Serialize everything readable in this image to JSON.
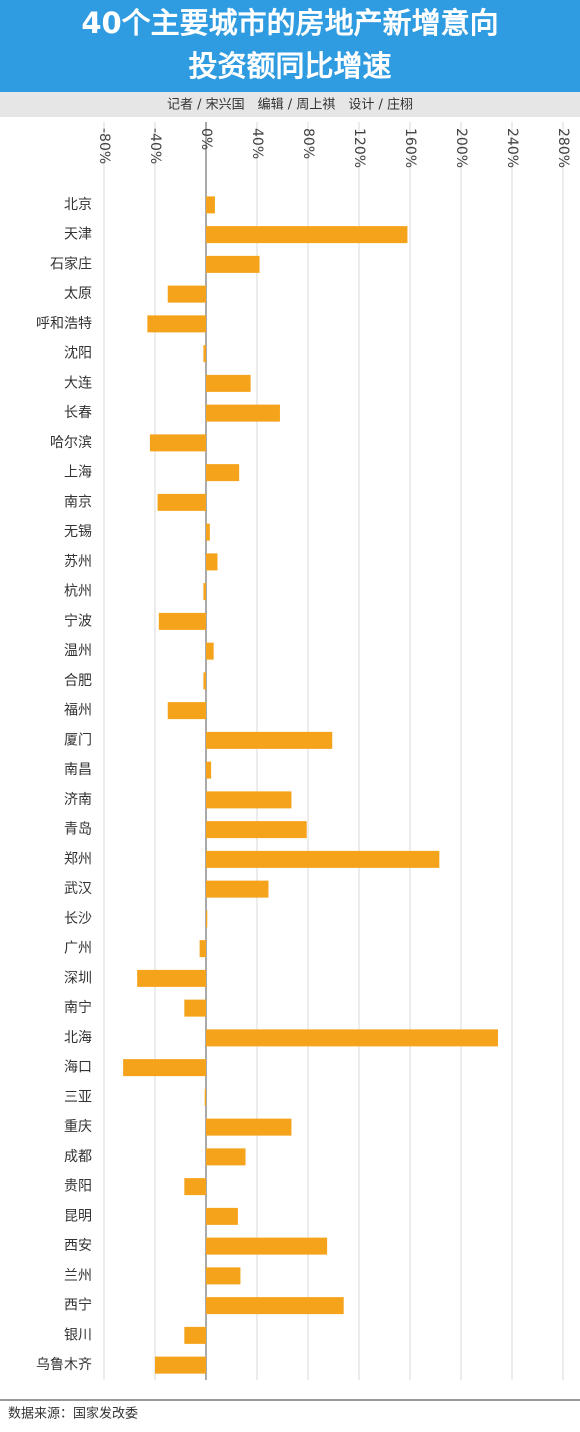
{
  "chart_data": {
    "type": "bar",
    "orientation": "horizontal",
    "title": "40个主要城市的房地产新增意向",
    "subtitle": "投资额同比增速",
    "byline": "记者 / 宋兴国　编辑 / 周上祺　设计 / 庄栩",
    "source": "数据来源：国家发改委",
    "categories": [
      "北京",
      "天津",
      "石家庄",
      "太原",
      "呼和浩特",
      "沈阳",
      "大连",
      "长春",
      "哈尔滨",
      "上海",
      "南京",
      "无锡",
      "苏州",
      "杭州",
      "宁波",
      "温州",
      "合肥",
      "福州",
      "厦门",
      "南昌",
      "济南",
      "青岛",
      "郑州",
      "武汉",
      "长沙",
      "广州",
      "深圳",
      "南宁",
      "北海",
      "海口",
      "三亚",
      "重庆",
      "成都",
      "贵阳",
      "昆明",
      "西安",
      "兰州",
      "西宁",
      "银川",
      "乌鲁木齐"
    ],
    "values": [
      7,
      158,
      42,
      -30,
      -46,
      -2,
      35,
      58,
      -44,
      26,
      -38,
      3,
      9,
      -2,
      -37,
      6,
      -2,
      -30,
      99,
      4,
      67,
      79,
      183,
      49,
      1,
      -5,
      -54,
      -17,
      229,
      -65,
      -1,
      67,
      31,
      -17,
      25,
      95,
      27,
      108,
      -17,
      -40
    ],
    "color": "#f5a31a",
    "xlim": [
      -80,
      280
    ],
    "xticks": [
      {
        "value": -80,
        "label": "-80%"
      },
      {
        "value": -40,
        "label": "-40%"
      },
      {
        "value": 0,
        "label": "0%"
      },
      {
        "value": 40,
        "label": "40%"
      },
      {
        "value": 80,
        "label": "80%"
      },
      {
        "value": 120,
        "label": "120%"
      },
      {
        "value": 160,
        "label": "160%"
      },
      {
        "value": 200,
        "label": "200%"
      },
      {
        "value": 240,
        "label": "240%"
      },
      {
        "value": 280,
        "label": "280%"
      }
    ],
    "grid": true
  }
}
